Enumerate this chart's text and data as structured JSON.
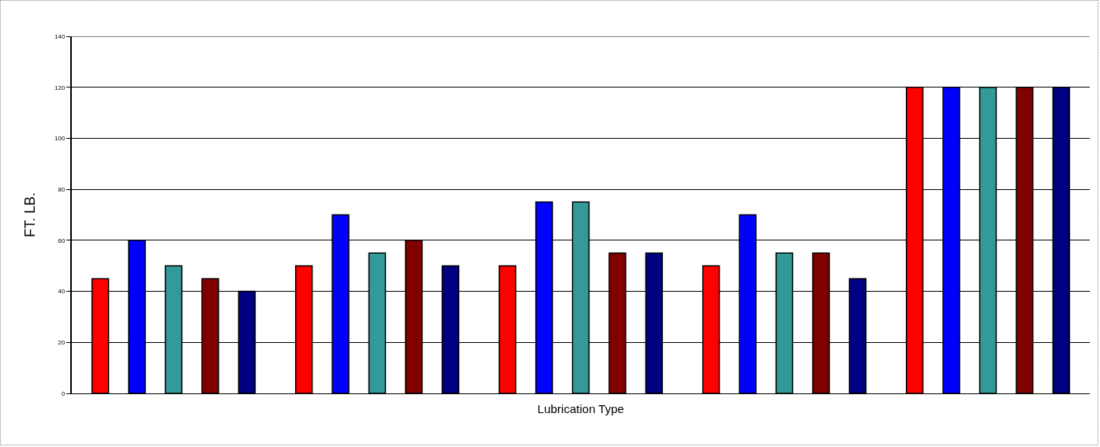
{
  "chart_data": {
    "type": "bar",
    "xlabel": "Lubrication Type",
    "ylabel": "FT. LB.",
    "categories": [
      null,
      null,
      null,
      null,
      null
    ],
    "series": [
      {
        "color": "#ff0000",
        "values": [
          45,
          50,
          50,
          50,
          120
        ]
      },
      {
        "color": "#0000ff",
        "values": [
          60,
          70,
          75,
          70,
          120
        ]
      },
      {
        "color": "#339999",
        "values": [
          50,
          55,
          75,
          55,
          120
        ]
      },
      {
        "color": "#800000",
        "values": [
          45,
          60,
          55,
          55,
          120
        ]
      },
      {
        "color": "#000080",
        "values": [
          40,
          50,
          55,
          45,
          120
        ]
      }
    ],
    "ylim": [
      0,
      140
    ],
    "yticks": [
      0,
      20,
      40,
      60,
      80,
      100,
      120,
      140
    ],
    "grid": "y"
  }
}
